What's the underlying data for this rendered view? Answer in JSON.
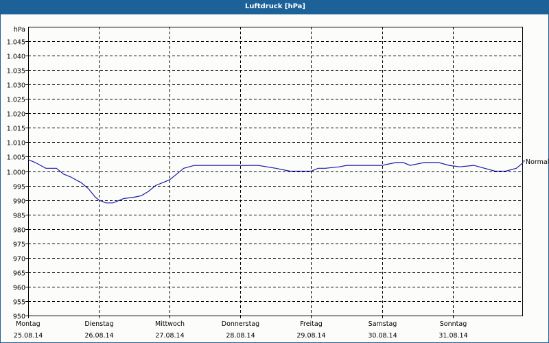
{
  "window": {
    "title": "Luftdruck [hPa]"
  },
  "chart_data": {
    "type": "line",
    "title": "Luftdruck [hPa]",
    "ylabel": "hPa",
    "xlabel": "",
    "ylim": [
      950,
      1050
    ],
    "yticks": [
      950,
      955,
      960,
      965,
      970,
      975,
      980,
      985,
      990,
      995,
      1000,
      1005,
      1010,
      1015,
      1020,
      1025,
      1030,
      1035,
      1040,
      1045
    ],
    "ytick_labels": [
      "950",
      "955",
      "960",
      "965",
      "970",
      "975",
      "980",
      "985",
      "990",
      "995",
      "1.000",
      "1.005",
      "1.010",
      "1.015",
      "1.020",
      "1.025",
      "1.030",
      "1.035",
      "1.040",
      "1.045"
    ],
    "grid": true,
    "categories": [
      "Montag 25.08.14",
      "Dienstag 26.08.14",
      "Mittwoch 27.08.14",
      "Donnerstag 28.08.14",
      "Freitag 29.08.14",
      "Samstag 30.08.14",
      "Sonntag 31.08.14"
    ],
    "x_days": [
      {
        "day": "Montag",
        "date": "25.08.14"
      },
      {
        "day": "Dienstag",
        "date": "26.08.14"
      },
      {
        "day": "Mittwoch",
        "date": "27.08.14"
      },
      {
        "day": "Donnerstag",
        "date": "28.08.14"
      },
      {
        "day": "Freitag",
        "date": "29.08.14"
      },
      {
        "day": "Samstag",
        "date": "30.08.14"
      },
      {
        "day": "Sonntag",
        "date": "31.08.14"
      }
    ],
    "reference_line": {
      "label": "Normal",
      "value": 1003.5
    },
    "series": [
      {
        "name": "Luftdruck",
        "color": "#1a1aa8",
        "x_days": [
          0,
          0.1,
          0.25,
          0.4,
          0.5,
          0.6,
          0.75,
          0.85,
          0.95,
          1.0,
          1.1,
          1.2,
          1.35,
          1.5,
          1.6,
          1.7,
          1.8,
          1.9,
          2.0,
          2.1,
          2.2,
          2.35,
          2.5,
          2.6,
          2.75,
          3.0,
          3.25,
          3.5,
          3.7,
          4.0,
          4.1,
          4.2,
          4.4,
          4.5,
          4.8,
          5.0,
          5.2,
          5.3,
          5.4,
          5.6,
          5.8,
          5.95,
          6.1,
          6.3,
          6.6,
          6.75,
          6.9,
          7.0
        ],
        "values": [
          1004,
          1003,
          1001,
          1001,
          999,
          998,
          996,
          994,
          991,
          990,
          989,
          989,
          990.5,
          991,
          991.5,
          993,
          995,
          996,
          997,
          999,
          1001,
          1002,
          1002,
          1002,
          1002,
          1002,
          1002,
          1001,
          1000,
          1000,
          1001,
          1001,
          1001.5,
          1002,
          1002,
          1002,
          1003,
          1003,
          1002,
          1003,
          1003,
          1002,
          1001.5,
          1002,
          1000,
          1000,
          1001,
          1003
        ]
      }
    ]
  }
}
